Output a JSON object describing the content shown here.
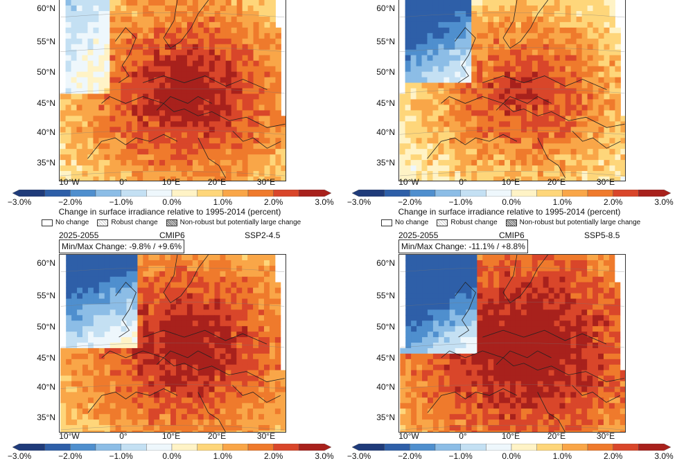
{
  "panels": [
    {
      "period": "",
      "model": "",
      "scenario": "",
      "minmax": "",
      "variant": "A"
    },
    {
      "period": "",
      "model": "",
      "scenario": "",
      "minmax": "",
      "variant": "B"
    },
    {
      "period": "2025-2055",
      "model": "CMIP6",
      "scenario": "SSP2-4.5",
      "minmax": "Min/Max Change: -9.8% / +9.6%",
      "variant": "C"
    },
    {
      "period": "2025-2055",
      "model": "CMIP6",
      "scenario": "SSP5-8.5",
      "minmax": "Min/Max Change: -11.1% / +8.8%",
      "variant": "D"
    }
  ],
  "lat_labels": [
    "60°N",
    "55°N",
    "50°N",
    "45°N",
    "40°N",
    "35°N"
  ],
  "lon_labels": [
    "10°W",
    "0°",
    "10°E",
    "20°E",
    "30°E"
  ],
  "colorbar": {
    "ticks": [
      "−3.0%",
      "−2.0%",
      "−1.0%",
      "0.0%",
      "1.0%",
      "2.0%",
      "3.0%"
    ],
    "colors": [
      "#1f3b7a",
      "#2e5fa8",
      "#4f8fce",
      "#8cbde6",
      "#c4e0f3",
      "#eef7fc",
      "#fff3c6",
      "#fed67a",
      "#f9a648",
      "#ef7a2c",
      "#d9462a",
      "#a8211c"
    ],
    "title": "Change in surface irradiance relative to 1995-2014 (percent)"
  },
  "legend": {
    "no_change": "No change",
    "robust": "Robust change",
    "non_robust": "Non-robust but potentially large change"
  }
}
